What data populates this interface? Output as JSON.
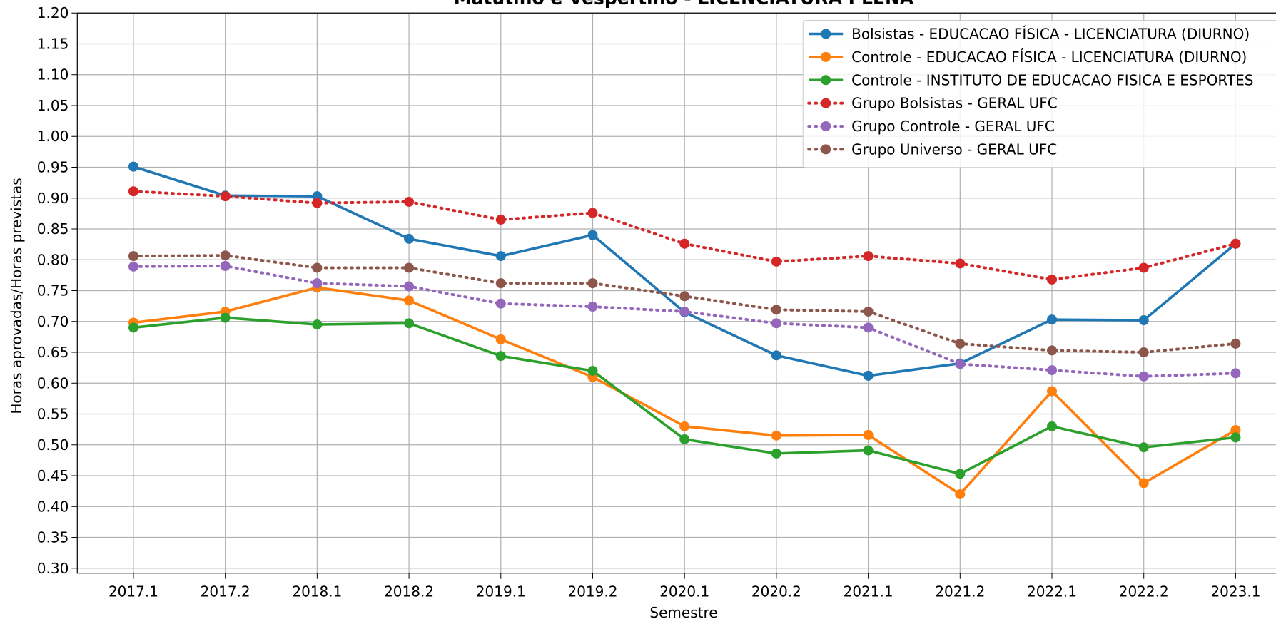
{
  "chart_data": {
    "type": "line",
    "title": "Matutino e Vespertino  - LICENCIATURA PLENA",
    "x_label": "Semestre",
    "y_label": "Horas aprovadas/Horas previstas",
    "categories": [
      "2017.1",
      "2017.2",
      "2018.1",
      "2018.2",
      "2019.1",
      "2019.2",
      "2020.1",
      "2020.2",
      "2021.1",
      "2021.2",
      "2022.1",
      "2022.2",
      "2023.1"
    ],
    "series": [
      {
        "name": "Bolsistas - EDUCACAO FÍSICA - LICENCIATURA (DIURNO)",
        "color": "#1f77b4",
        "style": "solid",
        "values": [
          0.951,
          0.904,
          0.903,
          0.834,
          0.806,
          0.84,
          0.715,
          0.645,
          0.612,
          0.632,
          0.703,
          0.702,
          0.826
        ]
      },
      {
        "name": "Controle - EDUCACAO FÍSICA - LICENCIATURA (DIURNO)",
        "color": "#ff7f0e",
        "style": "solid",
        "values": [
          0.698,
          0.716,
          0.755,
          0.734,
          0.671,
          0.61,
          0.53,
          0.515,
          0.516,
          0.42,
          0.587,
          0.438,
          0.524
        ]
      },
      {
        "name": "Controle - INSTITUTO DE EDUCACAO FISICA E ESPORTES",
        "color": "#2ca02c",
        "style": "solid",
        "values": [
          0.69,
          0.706,
          0.695,
          0.697,
          0.644,
          0.62,
          0.509,
          0.486,
          0.491,
          0.453,
          0.53,
          0.496,
          0.512
        ]
      },
      {
        "name": "Grupo Bolsistas - GERAL UFC",
        "color": "#d62728",
        "style": "dotted",
        "values": [
          0.911,
          0.903,
          0.892,
          0.894,
          0.865,
          0.876,
          0.826,
          0.797,
          0.806,
          0.794,
          0.768,
          0.787,
          0.826
        ]
      },
      {
        "name": "Grupo Controle - GERAL UFC",
        "color": "#9467bd",
        "style": "dotted",
        "values": [
          0.789,
          0.79,
          0.762,
          0.757,
          0.729,
          0.724,
          0.716,
          0.697,
          0.69,
          0.631,
          0.621,
          0.611,
          0.616
        ]
      },
      {
        "name": "Grupo Universo - GERAL UFC",
        "color": "#8c564b",
        "style": "dotted",
        "values": [
          0.806,
          0.807,
          0.787,
          0.787,
          0.762,
          0.762,
          0.741,
          0.719,
          0.716,
          0.664,
          0.653,
          0.65,
          0.664
        ]
      }
    ],
    "ylim": [
      0.292,
      1.2
    ],
    "yticks": [
      {
        "value": 0.3,
        "label": "0.30"
      },
      {
        "value": 0.35,
        "label": "0.35"
      },
      {
        "value": 0.4,
        "label": "0.40"
      },
      {
        "value": 0.45,
        "label": "0.45"
      },
      {
        "value": 0.5,
        "label": "0.50"
      },
      {
        "value": 0.55,
        "label": "0.55"
      },
      {
        "value": 0.6,
        "label": "0.60"
      },
      {
        "value": 0.65,
        "label": "0.65"
      },
      {
        "value": 0.7,
        "label": "0.70"
      },
      {
        "value": 0.75,
        "label": "0.75"
      },
      {
        "value": 0.8,
        "label": "0.80"
      },
      {
        "value": 0.85,
        "label": "0.85"
      },
      {
        "value": 0.9,
        "label": "0.90"
      },
      {
        "value": 0.95,
        "label": "0.95"
      },
      {
        "value": 1.0,
        "label": "1.00"
      },
      {
        "value": 1.05,
        "label": "1.05"
      },
      {
        "value": 1.1,
        "label": "1.10"
      },
      {
        "value": 1.15,
        "label": "1.15"
      },
      {
        "value": 1.2,
        "label": "1.20"
      }
    ],
    "grid": true,
    "legend": "upper right"
  }
}
